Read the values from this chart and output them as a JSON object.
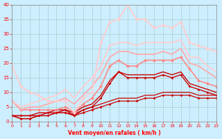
{
  "xlabel": "Vent moyen/en rafales ( km/h )",
  "bg_color": "#cceeff",
  "grid_color": "#aacccc",
  "xlim": [
    0,
    23
  ],
  "ylim": [
    0,
    40
  ],
  "yticks": [
    0,
    5,
    10,
    15,
    20,
    25,
    30,
    35,
    40
  ],
  "xticks": [
    0,
    1,
    2,
    3,
    4,
    5,
    6,
    7,
    8,
    9,
    10,
    11,
    12,
    13,
    14,
    15,
    16,
    17,
    18,
    19,
    20,
    21,
    22,
    23
  ],
  "lines": [
    {
      "x": [
        0,
        1,
        2,
        3,
        4,
        5,
        6,
        7,
        8,
        9,
        10,
        11,
        12,
        13,
        14,
        15,
        16,
        17,
        18,
        19,
        20,
        21,
        22,
        23
      ],
      "y": [
        2,
        1,
        1,
        2,
        2,
        3,
        3,
        2,
        3,
        4,
        5,
        6,
        7,
        7,
        7,
        8,
        8,
        9,
        9,
        9,
        9,
        8,
        8,
        8
      ],
      "color": "#cc0000",
      "lw": 0.9,
      "marker": "D",
      "ms": 2.0
    },
    {
      "x": [
        0,
        1,
        2,
        3,
        4,
        5,
        6,
        7,
        8,
        9,
        10,
        11,
        12,
        13,
        14,
        15,
        16,
        17,
        18,
        19,
        20,
        21,
        22,
        23
      ],
      "y": [
        2,
        1,
        1,
        2,
        2,
        3,
        3,
        2.5,
        4,
        5,
        6,
        7,
        8,
        8,
        8,
        9,
        9,
        10,
        10,
        10,
        10,
        9,
        9,
        9
      ],
      "color": "#cc0000",
      "lw": 0.9,
      "marker": null,
      "ms": 0
    },
    {
      "x": [
        0,
        1,
        2,
        3,
        4,
        5,
        6,
        7,
        8,
        9,
        10,
        11,
        12,
        13,
        14,
        15,
        16,
        17,
        18,
        19,
        20,
        21,
        22,
        23
      ],
      "y": [
        2,
        2,
        2,
        2,
        3,
        3,
        4,
        2,
        4,
        5,
        8,
        13,
        17,
        15,
        15,
        15,
        15,
        16,
        15,
        16,
        12,
        11,
        10,
        9
      ],
      "color": "#cc0000",
      "lw": 1.0,
      "marker": "D",
      "ms": 2.0
    },
    {
      "x": [
        0,
        1,
        2,
        3,
        4,
        5,
        6,
        7,
        8,
        9,
        10,
        11,
        12,
        13,
        14,
        15,
        16,
        17,
        18,
        19,
        20,
        21,
        22,
        23
      ],
      "y": [
        2,
        2,
        2,
        3,
        3,
        4,
        4,
        3,
        5,
        6,
        9,
        14,
        17,
        16,
        16,
        16,
        16,
        17,
        16,
        17,
        13,
        12,
        11,
        10
      ],
      "color": "#cc0000",
      "lw": 1.0,
      "marker": null,
      "ms": 0
    },
    {
      "x": [
        0,
        1,
        2,
        3,
        4,
        5,
        6,
        7,
        8,
        9,
        10,
        11,
        12,
        13,
        14,
        15,
        16,
        17,
        18,
        19,
        20,
        21,
        22,
        23
      ],
      "y": [
        7,
        4,
        4,
        4,
        4,
        4,
        5,
        3,
        6,
        8,
        12,
        19,
        21,
        19,
        19,
        21,
        21,
        21,
        21,
        22,
        18,
        14,
        13,
        12
      ],
      "color": "#ff8888",
      "lw": 1.2,
      "marker": "D",
      "ms": 2.5
    },
    {
      "x": [
        0,
        1,
        2,
        3,
        4,
        5,
        6,
        7,
        8,
        9,
        10,
        11,
        12,
        13,
        14,
        15,
        16,
        17,
        18,
        19,
        20,
        21,
        22,
        23
      ],
      "y": [
        7,
        4,
        5,
        5,
        6,
        7,
        8,
        6,
        9,
        12,
        16,
        22,
        24,
        24,
        23,
        23,
        23,
        24,
        23,
        25,
        20,
        19,
        17,
        15
      ],
      "color": "#ffaaaa",
      "lw": 1.3,
      "marker": null,
      "ms": 0
    },
    {
      "x": [
        0,
        1,
        2,
        3,
        4,
        5,
        6,
        7,
        8,
        9,
        10,
        11,
        12,
        13,
        14,
        15,
        16,
        17,
        18,
        19,
        20,
        21,
        22,
        23
      ],
      "y": [
        7,
        5,
        6,
        7,
        8,
        9,
        11,
        8,
        12,
        15,
        19,
        26,
        27,
        27,
        26,
        27,
        27,
        27,
        27,
        28,
        22,
        22,
        19,
        17
      ],
      "color": "#ffcccc",
      "lw": 1.3,
      "marker": null,
      "ms": 0
    },
    {
      "x": [
        0,
        1,
        2,
        3,
        4,
        5,
        6,
        7,
        8,
        9,
        10,
        11,
        12,
        13,
        14,
        15,
        16,
        17,
        18,
        19,
        20,
        21,
        22,
        23
      ],
      "y": [
        19,
        12,
        10,
        9,
        7,
        7,
        7,
        3,
        8,
        10,
        27,
        34,
        35,
        40,
        35,
        35,
        32,
        33,
        32,
        34,
        27,
        26,
        25,
        24
      ],
      "color": "#ffcccc",
      "lw": 1.3,
      "marker": "D",
      "ms": 2.5
    }
  ]
}
